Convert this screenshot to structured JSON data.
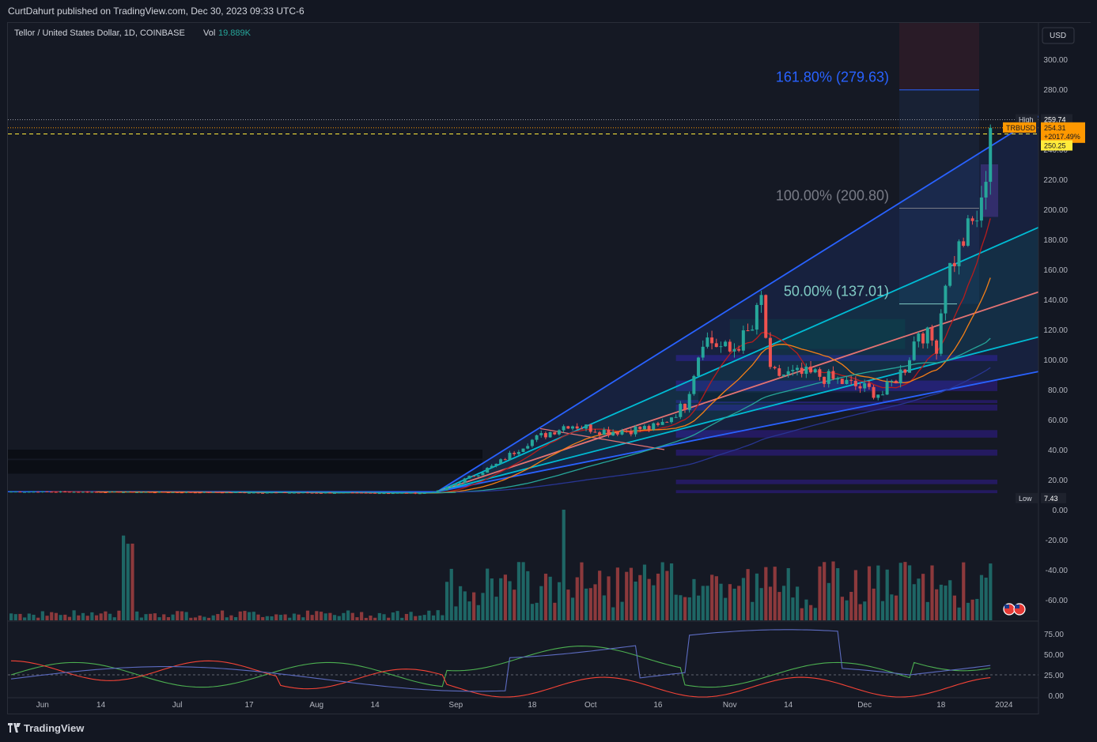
{
  "header": {
    "published": "CurtDahurt published on TradingView.com, Dec 30, 2023 09:33 UTC-6"
  },
  "legend": {
    "symbol": "Tellor / United States Dollar, 1D, COINBASE",
    "vol_label": "Vol",
    "vol_value": "19.889K"
  },
  "footer": {
    "brand": "TradingView"
  },
  "colors": {
    "bg": "#131722",
    "up": "#26a69a",
    "down": "#ef5350",
    "fib": "#2962ff",
    "accent": "#ff9800"
  },
  "chart_data": {
    "type": "candlestick",
    "currency": "USD",
    "yaxis": {
      "ticks": [
        "300.00",
        "280.00",
        "260.00",
        "240.00",
        "220.00",
        "200.00",
        "180.00",
        "160.00",
        "140.00",
        "120.00",
        "100.00",
        "80.00",
        "60.00",
        "40.00",
        "20.00",
        "0.00",
        "-20.00",
        "-40.00",
        "-60.00"
      ]
    },
    "xaxis": {
      "ticks": [
        "Jun",
        "14",
        "Jul",
        "17",
        "Aug",
        "14",
        "Sep",
        "18",
        "Oct",
        "16",
        "Nov",
        "14",
        "Dec",
        "18",
        "2024"
      ]
    },
    "price_labels": {
      "high_label": "High",
      "high": "259.74",
      "symbol": "TRBUSD",
      "last": "254.31",
      "change": "+2017.49%",
      "level": "250.25",
      "low_label": "Low",
      "low": "7.43"
    },
    "fib_levels": [
      {
        "label": "161.80% (279.63)",
        "price": 279.63
      },
      {
        "label": "100.00% (200.80)",
        "price": 200.8
      },
      {
        "label": "50.00% (137.01)",
        "price": 137.01
      }
    ],
    "price_path_keypoints": [
      {
        "date": "2023-05-25",
        "close": 12
      },
      {
        "date": "2023-08-25",
        "close": 11
      },
      {
        "date": "2023-08-29",
        "close": 13
      },
      {
        "date": "2023-09-10",
        "close": 30
      },
      {
        "date": "2023-09-17",
        "close": 45
      },
      {
        "date": "2023-09-26",
        "close": 57
      },
      {
        "date": "2023-10-05",
        "close": 52
      },
      {
        "date": "2023-10-16",
        "close": 55
      },
      {
        "date": "2023-10-22",
        "close": 70
      },
      {
        "date": "2023-10-26",
        "close": 115
      },
      {
        "date": "2023-11-01",
        "close": 105
      },
      {
        "date": "2023-11-06",
        "close": 120
      },
      {
        "date": "2023-11-08",
        "close": 140
      },
      {
        "date": "2023-11-10",
        "close": 90
      },
      {
        "date": "2023-11-20",
        "close": 90
      },
      {
        "date": "2023-12-05",
        "close": 77
      },
      {
        "date": "2023-12-10",
        "close": 95
      },
      {
        "date": "2023-12-13",
        "close": 120
      },
      {
        "date": "2023-12-17",
        "close": 110
      },
      {
        "date": "2023-12-19",
        "close": 155
      },
      {
        "date": "2023-12-23",
        "close": 180
      },
      {
        "date": "2023-12-27",
        "close": 200
      },
      {
        "date": "2023-12-29",
        "close": 254.31
      }
    ],
    "oscillator_ticks": [
      "75.00",
      "50.00",
      "25.00",
      "0.00"
    ]
  }
}
